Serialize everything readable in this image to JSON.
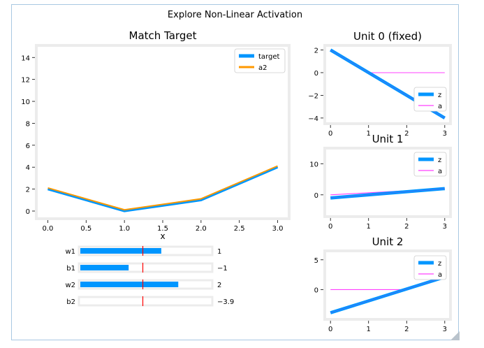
{
  "window": {
    "title": "Explore Non-Linear Activation"
  },
  "main_plot": {
    "title": "Match Target",
    "xlabel": "x",
    "x_ticks": [
      "0.0",
      "0.5",
      "1.0",
      "1.5",
      "2.0",
      "2.5",
      "3.0"
    ],
    "y_ticks": [
      "0",
      "2",
      "4",
      "6",
      "8",
      "10",
      "12",
      "14"
    ],
    "legend": [
      "target",
      "a2"
    ]
  },
  "sliders": [
    {
      "label": "w1",
      "value_text": "1",
      "fill_fraction": 0.62
    },
    {
      "label": "b1",
      "value_text": "−1",
      "fill_fraction": 0.37
    },
    {
      "label": "w2",
      "value_text": "2",
      "fill_fraction": 0.75
    },
    {
      "label": "b2",
      "value_text": "−3.9",
      "fill_fraction": 0.0
    }
  ],
  "unit0": {
    "title": "Unit 0 (fixed)",
    "x_ticks": [
      "0",
      "1",
      "2",
      "3"
    ],
    "y_ticks": [
      "2",
      "0",
      "−2",
      "−4"
    ],
    "legend": [
      "z",
      "a"
    ]
  },
  "unit1": {
    "title": "Unit 1",
    "x_ticks": [
      "0",
      "1",
      "2",
      "3"
    ],
    "y_ticks": [
      "10",
      "0"
    ],
    "legend": [
      "z",
      "a"
    ]
  },
  "unit2": {
    "title": "Unit 2",
    "x_ticks": [
      "0",
      "1",
      "2",
      "3"
    ],
    "y_ticks": [
      "5",
      "0"
    ],
    "legend": [
      "z",
      "a"
    ]
  },
  "colors": {
    "target": "#0096ff",
    "a2": "#ff9800",
    "z": "#0096ff",
    "a": "#ff40ff",
    "marker": "#ff0000"
  },
  "chart_data": [
    {
      "type": "line",
      "title": "Match Target",
      "xlabel": "x",
      "xlim": [
        -0.15,
        3.15
      ],
      "ylim": [
        -0.7,
        15.1
      ],
      "series": [
        {
          "name": "target",
          "x": [
            0,
            1,
            2,
            3
          ],
          "y": [
            2,
            0,
            1,
            4
          ]
        },
        {
          "name": "a2",
          "x": [
            0,
            1,
            2,
            3
          ],
          "y": [
            2.1,
            0.1,
            1.1,
            4.1
          ]
        }
      ]
    },
    {
      "type": "line",
      "title": "Unit 0 (fixed)",
      "xlim": [
        -0.15,
        3.15
      ],
      "ylim": [
        -4.5,
        2.4
      ],
      "series": [
        {
          "name": "z",
          "x": [
            0,
            3
          ],
          "y": [
            2,
            -4
          ]
        },
        {
          "name": "a",
          "x": [
            0,
            1,
            3
          ],
          "y": [
            2,
            0,
            0
          ]
        }
      ]
    },
    {
      "type": "line",
      "title": "Unit 1",
      "xlim": [
        -0.15,
        3.15
      ],
      "ylim": [
        -7,
        15
      ],
      "series": [
        {
          "name": "z",
          "x": [
            0,
            3
          ],
          "y": [
            -1,
            2
          ]
        },
        {
          "name": "a",
          "x": [
            0,
            3
          ],
          "y": [
            0,
            2
          ]
        }
      ]
    },
    {
      "type": "line",
      "title": "Unit 2",
      "xlim": [
        -0.15,
        3.15
      ],
      "ylim": [
        -5,
        6.5
      ],
      "series": [
        {
          "name": "z",
          "x": [
            0,
            3
          ],
          "y": [
            -3.9,
            2.1
          ]
        },
        {
          "name": "a",
          "x": [
            0,
            1.95,
            3
          ],
          "y": [
            0,
            0,
            2.1
          ]
        }
      ]
    }
  ]
}
